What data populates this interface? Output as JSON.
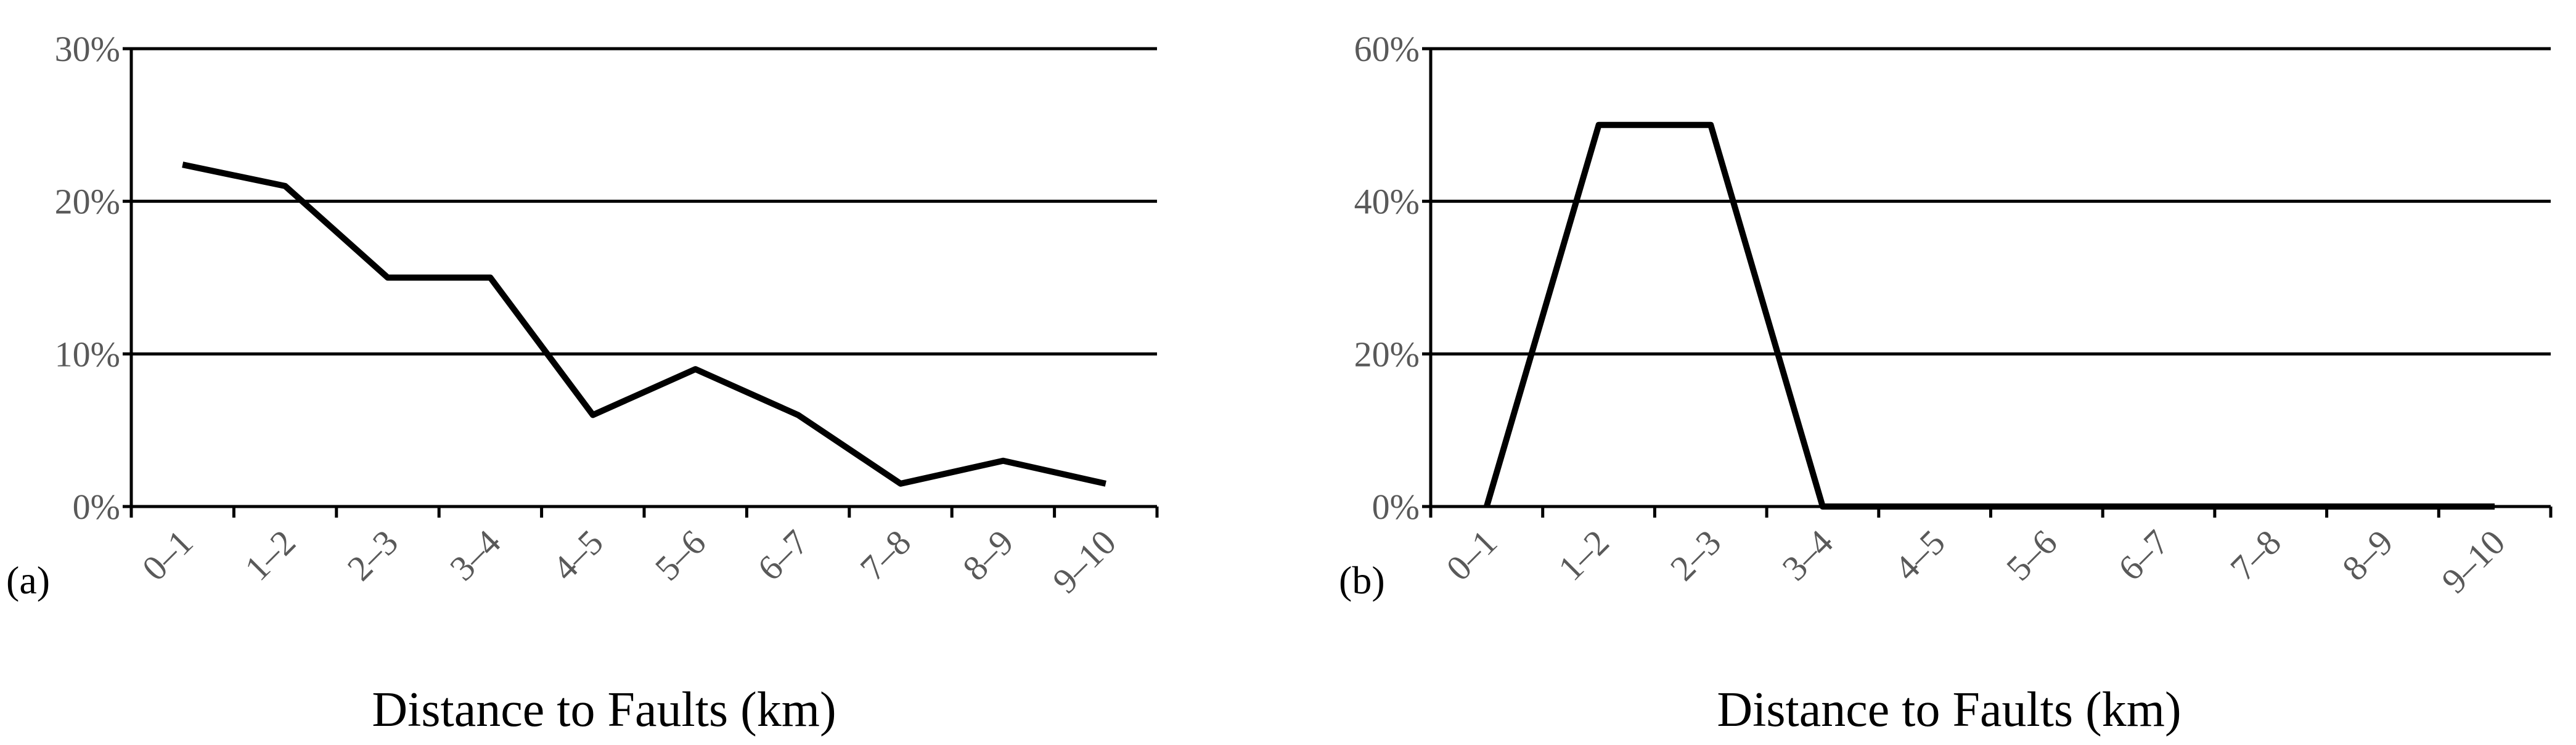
{
  "chart_data": [
    {
      "type": "line",
      "panel_label": "(a)",
      "xlabel": "Distance to Faults (km)",
      "ylabel": "",
      "categories": [
        "0–1",
        "1–2",
        "2–3",
        "3–4",
        "4–5",
        "5–6",
        "6–7",
        "7–8",
        "8–9",
        "9–10"
      ],
      "series": [
        {
          "values": [
            22.4,
            21.0,
            15.0,
            15.0,
            6.0,
            9.0,
            6.0,
            1.5,
            3.0,
            1.5
          ]
        }
      ],
      "ylim": [
        0,
        30
      ],
      "yticks": [
        "0%",
        "10%",
        "20%",
        "30%"
      ],
      "grid": true,
      "legend": "none"
    },
    {
      "type": "line",
      "panel_label": "(b)",
      "xlabel": "Distance to Faults (km)",
      "ylabel": "",
      "categories": [
        "0–1",
        "1–2",
        "2–3",
        "3–4",
        "4–5",
        "5–6",
        "6–7",
        "7–8",
        "8–9",
        "9–10"
      ],
      "series": [
        {
          "values": [
            0,
            50,
            50,
            0,
            0,
            0,
            0,
            0,
            0,
            0
          ]
        }
      ],
      "ylim": [
        0,
        60
      ],
      "yticks": [
        "0%",
        "20%",
        "40%",
        "60%"
      ],
      "grid": true,
      "legend": "none"
    }
  ],
  "colors": {
    "line": "#000000",
    "grid": "#000000",
    "tick_text": "#595959"
  }
}
